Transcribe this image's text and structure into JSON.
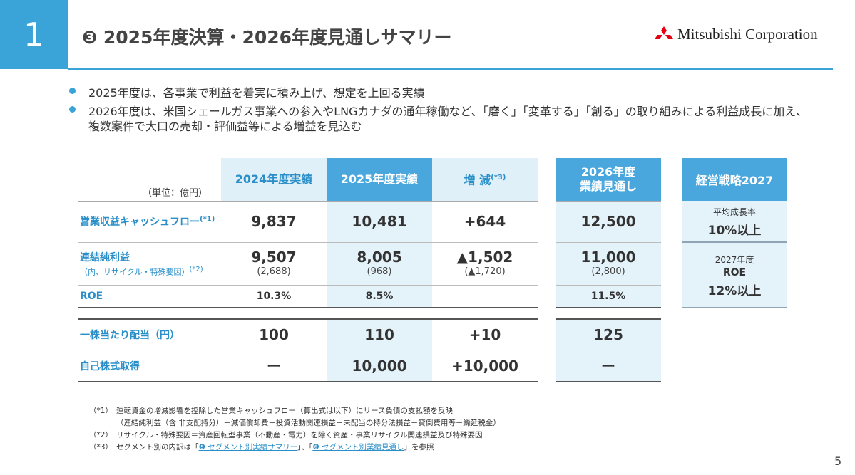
{
  "header": {
    "section": "1",
    "title": "❸ 2025年度決算・2026年度見通しサマリー",
    "logo": "Mitsubishi Corporation"
  },
  "bullets": [
    {
      "lines": [
        "2025年度は、各事業で利益を着実に積み上げ、想定を上回る実績"
      ]
    },
    {
      "lines": [
        "2026年度は、米国シェールガス事業への参入やLNGカナダの通年稼働など、「磨く」「変革する」「創る」の取り組みによる利益成長に加え、",
        "複数案件で大口の売却・評価益等による増益を見込む"
      ]
    }
  ],
  "table": {
    "unit": "（単位：億円）",
    "columns": [
      {
        "lines": [
          "2024年度実績"
        ]
      },
      {
        "lines": [
          "2025年度実績"
        ]
      },
      {
        "lines": [
          "増 減"
        ],
        "note": "(*3)"
      },
      {
        "lines": [
          "2026年度",
          "業績見通し"
        ]
      }
    ],
    "rows": [
      {
        "label": "営業収益キャッシュフロー",
        "note": "(*1)",
        "cells": [
          {
            "value": "9,837"
          },
          {
            "value": "10,481"
          },
          {
            "value": "+644"
          },
          {
            "value": "12,500"
          }
        ]
      },
      {
        "label": "連結純利益",
        "sublabel": "（内、リサイクル・特殊要因）",
        "note": "(*2)",
        "cells": [
          {
            "value": "9,507",
            "sub": "(2,688)"
          },
          {
            "value": "8,005",
            "sub": "(968)"
          },
          {
            "value": "▲1,502",
            "sub": "(▲1,720)"
          },
          {
            "value": "11,000",
            "sub": "(2,800)"
          }
        ]
      },
      {
        "label": "ROE",
        "cells": [
          {
            "value": "10.3%"
          },
          {
            "value": "8.5%"
          },
          null,
          {
            "value": "11.5%"
          }
        ]
      },
      {
        "label": "一株当たり配当（円）",
        "cells": [
          {
            "value": "100"
          },
          {
            "value": "110"
          },
          {
            "value": "+10"
          },
          {
            "value": "125"
          }
        ]
      },
      {
        "label": "自己株式取得",
        "cells": [
          {
            "value": "ー"
          },
          {
            "value": "10,000"
          },
          {
            "value": "+10,000"
          },
          {
            "value": "ー"
          }
        ]
      }
    ]
  },
  "strategy": {
    "title": "経営戦略2027",
    "items": [
      {
        "lines": [
          "平均成長率"
        ],
        "value": "10%以上"
      },
      {
        "lines": [
          "2027年度",
          "ROE"
        ],
        "value": "12%以上"
      }
    ]
  },
  "footnotes": [
    {
      "mark": "（*1）",
      "lines": [
        "運転資金の増減影響を控除した営業キャッシュフロー（算出式は以下）にリース負債の支払額を反映",
        "（連結純利益（含 非支配持分）－減価償却費－投資活動関連損益－未配当の持分法損益－貸倒費用等－繰延税金）"
      ]
    },
    {
      "mark": "（*2）",
      "lines": [
        "リサイクル・特殊要因＝資産回転型事業（不動産・電力）を除く資産・事業リサイクル関連損益及び特殊要因"
      ]
    },
    {
      "mark": "（*3）",
      "parts": [
        "セグメント別の内訳は「",
        "❺ セグメント別実績サマリー",
        "」、「",
        "❻ セグメント別業績見通し",
        "」を参照"
      ]
    }
  ],
  "page_number": "5"
}
